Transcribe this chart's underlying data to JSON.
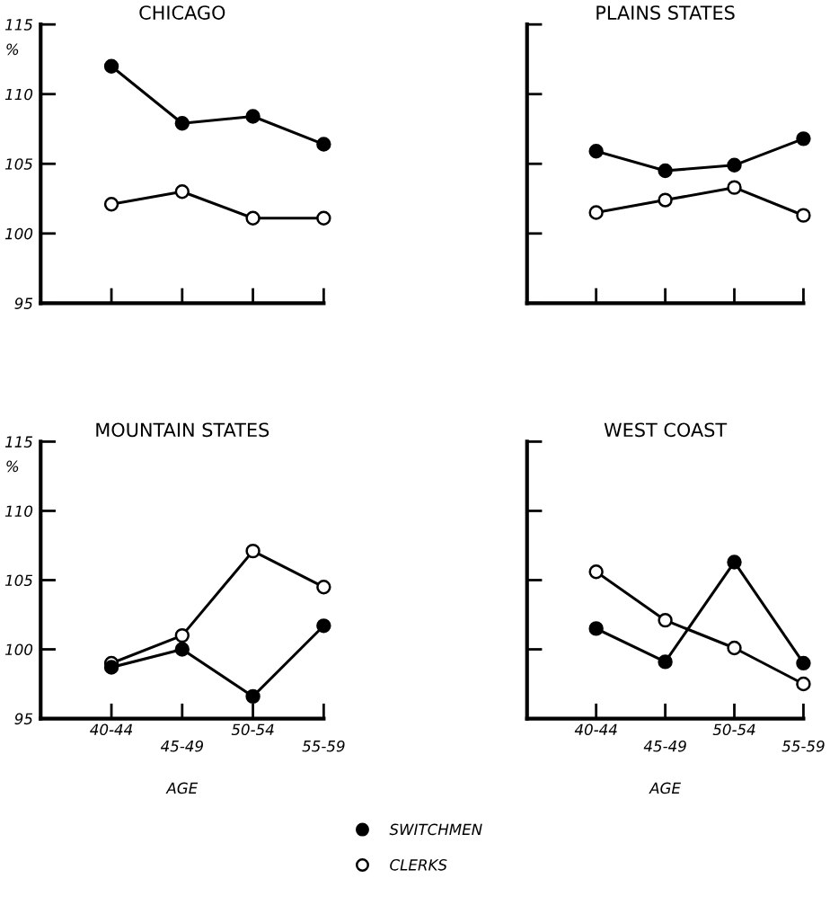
{
  "chart_data": [
    {
      "type": "line",
      "title": "CHICAGO",
      "ylabel": "%",
      "categories": [
        "40-44",
        "45-49",
        "50-54",
        "55-59"
      ],
      "ylim": [
        95,
        115
      ],
      "yticks": [
        95,
        100,
        105,
        110,
        115
      ],
      "tick_labels": "y",
      "marker": "circle",
      "grid": false,
      "legend": "bottom",
      "series": [
        {
          "name": "SWITCHMEN",
          "color": "#000000",
          "values": [
            112.0,
            107.9,
            108.4,
            106.4
          ]
        },
        {
          "name": "CLERKS",
          "color": "#ffffff",
          "values": [
            102.1,
            103.0,
            101.1,
            101.1
          ]
        }
      ]
    },
    {
      "type": "line",
      "title": "PLAINS STATES",
      "categories": [
        "40-44",
        "45-49",
        "50-54",
        "55-59"
      ],
      "ylim": [
        95,
        115
      ],
      "yticks": [
        95,
        100,
        105,
        110,
        115
      ],
      "tick_labels": false,
      "marker": "circle",
      "grid": false,
      "series": [
        {
          "name": "SWITCHMEN",
          "color": "#000000",
          "values": [
            105.9,
            104.5,
            104.9,
            106.8
          ]
        },
        {
          "name": "CLERKS",
          "color": "#ffffff",
          "values": [
            101.5,
            102.4,
            103.3,
            101.3
          ]
        }
      ]
    },
    {
      "type": "line",
      "title": "MOUNTAIN STATES",
      "xlabel": "AGE",
      "ylabel": "%",
      "categories": [
        "40-44",
        "45-49",
        "50-54",
        "55-59"
      ],
      "ylim": [
        95,
        115
      ],
      "yticks": [
        95,
        100,
        105,
        110,
        115
      ],
      "marker": "circle",
      "grid": false,
      "series": [
        {
          "name": "SWITCHMEN",
          "color": "#000000",
          "values": [
            98.7,
            100.0,
            96.6,
            101.7
          ]
        },
        {
          "name": "CLERKS",
          "color": "#ffffff",
          "values": [
            99.0,
            101.0,
            107.1,
            104.5
          ]
        }
      ]
    },
    {
      "type": "line",
      "title": "WEST COAST",
      "xlabel": "AGE",
      "categories": [
        "40-44",
        "45-49",
        "50-54",
        "55-59"
      ],
      "ylim": [
        95,
        115
      ],
      "yticks": [
        95,
        100,
        105,
        110,
        115
      ],
      "tick_labels": "x",
      "marker": "circle",
      "grid": false,
      "series": [
        {
          "name": "SWITCHMEN",
          "color": "#000000",
          "values": [
            101.5,
            99.1,
            106.3,
            99.0
          ]
        },
        {
          "name": "CLERKS",
          "color": "#ffffff",
          "values": [
            105.6,
            102.1,
            100.1,
            97.5
          ]
        }
      ]
    }
  ]
}
